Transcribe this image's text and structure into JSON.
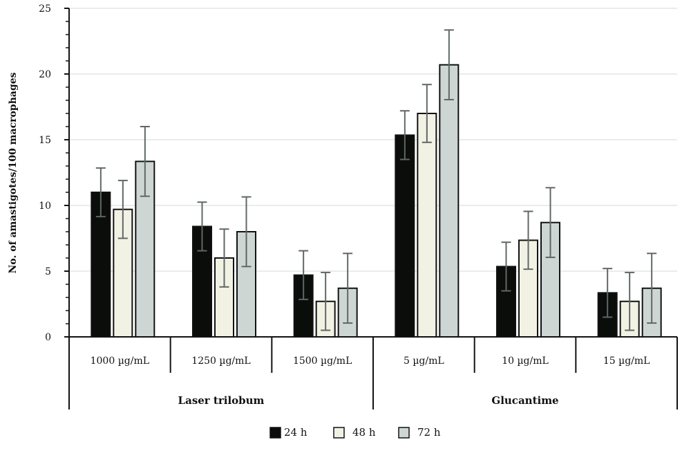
{
  "chart_data": {
    "type": "bar",
    "title": "",
    "xlabel": "",
    "ylabel": "No. of amastigotes/100 macrophages",
    "ylim": [
      0,
      25
    ],
    "yticks": [
      0,
      5,
      10,
      15,
      20,
      25
    ],
    "grid": true,
    "legend_position": "bottom",
    "groups": [
      {
        "label": "Laser trilobum",
        "categories": [
          "1000 µg/mL",
          "1250 µg/mL",
          "1500 µg/mL"
        ]
      },
      {
        "label": "Glucantime",
        "categories": [
          "5 µg/mL",
          "10 µg/mL",
          "15 µg/mL"
        ]
      }
    ],
    "categories": [
      "1000 µg/mL",
      "1250 µg/mL",
      "1500 µg/mL",
      "5 µg/mL",
      "10 µg/mL",
      "15 µg/mL"
    ],
    "series": [
      {
        "name": "24 h",
        "color": "#0b0d0b",
        "values": [
          11.0,
          8.4,
          4.7,
          15.35,
          5.35,
          3.35
        ],
        "errors": [
          1.85,
          1.85,
          1.85,
          1.85,
          1.85,
          1.85
        ]
      },
      {
        "name": "48 h",
        "color": "#f1f2e4",
        "values": [
          9.7,
          6.0,
          2.7,
          17.0,
          7.35,
          2.7
        ],
        "errors": [
          2.2,
          2.2,
          2.2,
          2.2,
          2.2,
          2.2
        ]
      },
      {
        "name": "72 h",
        "color": "#ced6d4",
        "values": [
          13.35,
          8.0,
          3.7,
          20.7,
          8.7,
          3.7
        ],
        "errors": [
          2.65,
          2.65,
          2.65,
          2.65,
          2.65,
          2.65
        ]
      }
    ],
    "colors": {
      "axis": "#111111",
      "grid": "#e2e5e4",
      "error_bar": "#5f6766"
    }
  }
}
